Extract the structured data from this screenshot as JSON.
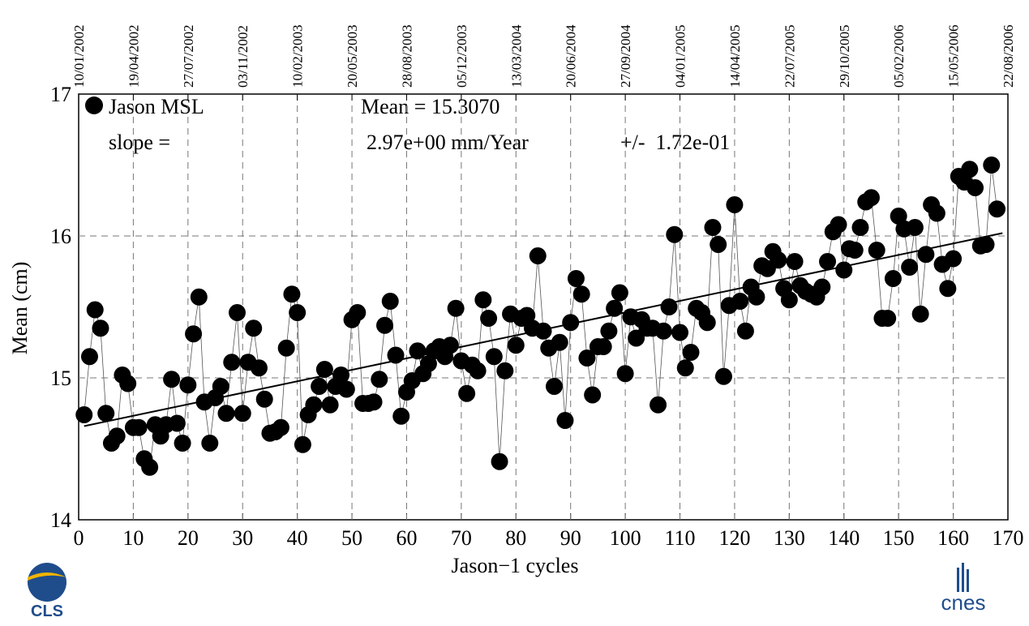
{
  "chart_data": {
    "type": "scatter",
    "legend_label": "Jason MSL",
    "annotations": {
      "mean": "Mean = 15.3070",
      "slope_label": "slope =",
      "slope_value": "2.97e+00 mm/Year",
      "slope_error": "+/-  1.72e-01"
    },
    "xlabel": "Jason−1 cycles",
    "ylabel": "Mean (cm)",
    "color": "#000000",
    "grid": true,
    "x": [
      1,
      2,
      3,
      4,
      5,
      6,
      7,
      8,
      9,
      10,
      11,
      12,
      13,
      14,
      15,
      16,
      17,
      18,
      19,
      20,
      21,
      22,
      23,
      24,
      25,
      26,
      27,
      28,
      29,
      30,
      31,
      32,
      33,
      34,
      35,
      36,
      37,
      38,
      39,
      40,
      41,
      42,
      43,
      44,
      45,
      46,
      47,
      48,
      49,
      50,
      51,
      52,
      53,
      54,
      55,
      56,
      57,
      58,
      59,
      60,
      61,
      62,
      63,
      64,
      65,
      66,
      67,
      68,
      69,
      70,
      71,
      72,
      73,
      74,
      75,
      76,
      77,
      78,
      79,
      80,
      81,
      82,
      83,
      84,
      85,
      86,
      87,
      88,
      89,
      90,
      91,
      92,
      93,
      94,
      95,
      96,
      97,
      98,
      99,
      100,
      101,
      102,
      103,
      104,
      105,
      106,
      107,
      108,
      109,
      110,
      111,
      112,
      113,
      114,
      115,
      116,
      117,
      118,
      119,
      120,
      121,
      122,
      123,
      124,
      125,
      126,
      127,
      128,
      129,
      130,
      131,
      132,
      133,
      134,
      135,
      136,
      137,
      138,
      139,
      140,
      141,
      142,
      143,
      144,
      145,
      146,
      147,
      148,
      149,
      150,
      151,
      152,
      153,
      154,
      155,
      156,
      157,
      158,
      159,
      160,
      161,
      162,
      163,
      164,
      165,
      166,
      167,
      168
    ],
    "values": [
      14.74,
      15.15,
      15.48,
      15.35,
      14.75,
      14.54,
      14.59,
      15.02,
      14.96,
      14.65,
      14.65,
      14.43,
      14.37,
      14.67,
      14.59,
      14.67,
      14.99,
      14.68,
      14.54,
      14.95,
      15.31,
      15.57,
      14.83,
      14.54,
      14.86,
      14.94,
      14.75,
      15.11,
      15.46,
      14.75,
      15.11,
      15.35,
      15.07,
      14.85,
      14.61,
      14.62,
      14.65,
      15.21,
      15.59,
      15.46,
      14.53,
      14.74,
      14.81,
      14.94,
      15.06,
      14.81,
      14.94,
      15.02,
      14.92,
      15.41,
      15.46,
      14.82,
      14.82,
      14.83,
      14.99,
      15.37,
      15.54,
      15.16,
      14.73,
      14.9,
      14.98,
      15.19,
      15.03,
      15.1,
      15.19,
      15.22,
      15.15,
      15.23,
      15.49,
      15.12,
      14.89,
      15.09,
      15.05,
      15.55,
      15.42,
      15.15,
      14.41,
      15.05,
      15.45,
      15.23,
      15.42,
      15.44,
      15.35,
      15.86,
      15.33,
      15.21,
      14.94,
      15.25,
      14.7,
      15.39,
      15.7,
      15.59,
      15.14,
      14.88,
      15.22,
      15.22,
      15.33,
      15.49,
      15.6,
      15.03,
      15.43,
      15.28,
      15.41,
      15.35,
      15.35,
      14.81,
      15.33,
      15.5,
      16.01,
      15.32,
      15.07,
      15.18,
      15.49,
      15.46,
      15.39,
      16.06,
      15.94,
      15.01,
      15.51,
      16.22,
      15.54,
      15.33,
      15.64,
      15.57,
      15.79,
      15.77,
      15.89,
      15.83,
      15.63,
      15.55,
      15.82,
      15.65,
      15.61,
      15.59,
      15.57,
      15.64,
      15.82,
      16.03,
      16.08,
      15.76,
      15.91,
      15.9,
      16.06,
      16.24,
      16.27,
      15.9,
      15.42,
      15.42,
      15.7,
      16.14,
      16.05,
      15.78,
      16.06,
      15.45,
      15.87,
      16.22,
      16.16,
      15.8,
      15.63,
      15.84,
      16.42,
      16.38,
      16.47,
      16.34,
      15.93,
      15.94,
      16.5,
      16.19
    ],
    "trend_line": {
      "x": [
        1,
        169
      ],
      "y": [
        14.66,
        16.02
      ]
    },
    "xlim": [
      0,
      170
    ],
    "xticks": [
      0,
      10,
      20,
      30,
      40,
      50,
      60,
      70,
      80,
      90,
      100,
      110,
      120,
      130,
      140,
      150,
      160,
      170
    ],
    "ylim": [
      14,
      17
    ],
    "yticks": [
      14,
      15,
      16,
      17
    ],
    "top_ticks": [
      {
        "value": 0,
        "label": "10/01/2002"
      },
      {
        "value": 10,
        "label": "19/04/2002"
      },
      {
        "value": 20,
        "label": "27/07/2002"
      },
      {
        "value": 30,
        "label": "03/11/2002"
      },
      {
        "value": 40,
        "label": "10/02/2003"
      },
      {
        "value": 50,
        "label": "20/05/2003"
      },
      {
        "value": 60,
        "label": "28/08/2003"
      },
      {
        "value": 70,
        "label": "05/12/2003"
      },
      {
        "value": 80,
        "label": "13/03/2004"
      },
      {
        "value": 90,
        "label": "20/06/2004"
      },
      {
        "value": 100,
        "label": "27/09/2004"
      },
      {
        "value": 110,
        "label": "04/01/2005"
      },
      {
        "value": 120,
        "label": "14/04/2005"
      },
      {
        "value": 130,
        "label": "22/07/2005"
      },
      {
        "value": 140,
        "label": "29/10/2005"
      },
      {
        "value": 150,
        "label": "05/02/2006"
      },
      {
        "value": 160,
        "label": "15/05/2006"
      },
      {
        "value": 170,
        "label": "22/08/2006"
      }
    ]
  },
  "logos": {
    "left": "CLS",
    "right": "cnes"
  }
}
